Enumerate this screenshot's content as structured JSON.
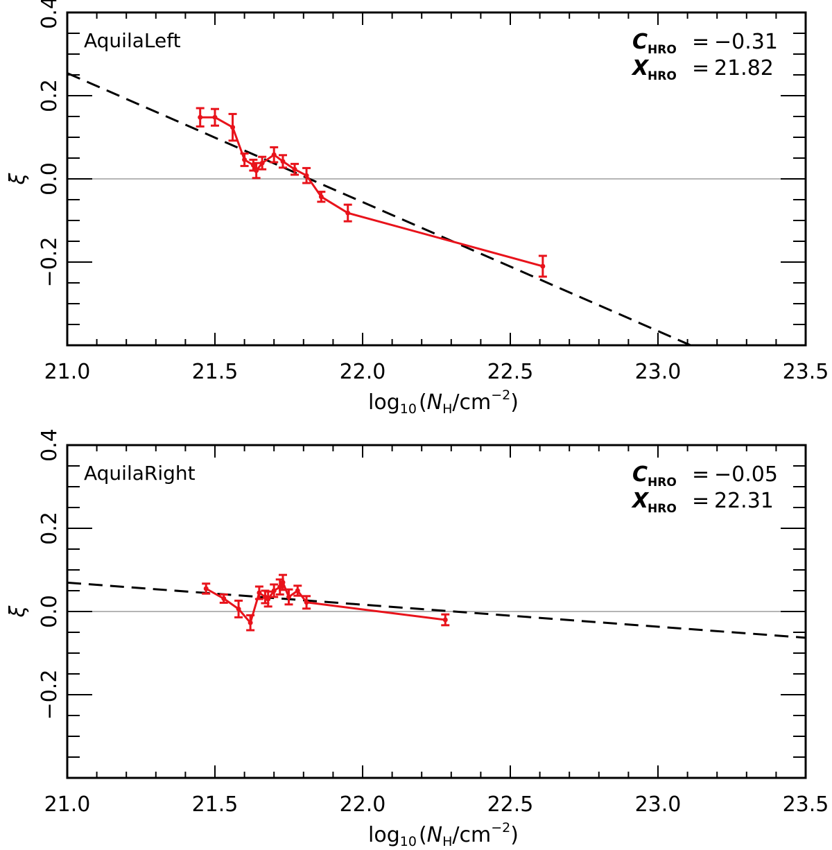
{
  "chart_data": [
    {
      "type": "line",
      "title": "",
      "panel_label": "AquilaLeft",
      "xlabel": "log10(NH/cm−2)",
      "xlabel_parts": {
        "base": "log",
        "base_sub": "10",
        "open": "(",
        "N": "N",
        "N_sub": "H",
        "slash_unit": "/cm",
        "exp": "−2",
        "close": ")"
      },
      "ylabel": "ξ",
      "xlim": [
        21.0,
        23.5
      ],
      "ylim": [
        -0.4,
        0.4
      ],
      "x_ticks": [
        "21.0",
        "21.5",
        "22.0",
        "22.5",
        "23.0",
        "23.5"
      ],
      "x_tick_values": [
        21.0,
        21.5,
        22.0,
        22.5,
        23.0,
        23.5
      ],
      "y_ticks": [
        "0.4",
        "0.2",
        "0.0",
        "−0.2"
      ],
      "y_tick_values": [
        0.4,
        0.2,
        0.0,
        -0.2
      ],
      "reference_line_y": 0.0,
      "annotations": [
        {
          "symbol": "C",
          "sub": "HRO",
          "eq": "=",
          "value": "−0.31"
        },
        {
          "symbol": "X",
          "sub": "HRO",
          "eq": "=",
          "value": "21.82"
        }
      ],
      "fit": {
        "slope": -0.31,
        "x_intercept": 21.82
      },
      "series": [
        {
          "name": "xi",
          "color": "#e8131b",
          "x": [
            21.45,
            21.5,
            21.56,
            21.6,
            21.63,
            21.64,
            21.66,
            21.7,
            21.73,
            21.77,
            21.81,
            21.86,
            21.95,
            22.61
          ],
          "y": [
            0.148,
            0.148,
            0.124,
            0.046,
            0.033,
            0.02,
            0.038,
            0.058,
            0.042,
            0.023,
            0.008,
            -0.043,
            -0.082,
            -0.21
          ],
          "err": [
            0.022,
            0.02,
            0.032,
            0.015,
            0.013,
            0.018,
            0.015,
            0.018,
            0.015,
            0.013,
            0.018,
            0.012,
            0.02,
            0.025
          ]
        }
      ]
    },
    {
      "type": "line",
      "title": "",
      "panel_label": "AquilaRight",
      "xlabel": "log10(NH/cm−2)",
      "xlabel_parts": {
        "base": "log",
        "base_sub": "10",
        "open": "(",
        "N": "N",
        "N_sub": "H",
        "slash_unit": "/cm",
        "exp": "−2",
        "close": ")"
      },
      "ylabel": "ξ",
      "xlim": [
        21.0,
        23.5
      ],
      "ylim": [
        -0.4,
        0.4
      ],
      "x_ticks": [
        "21.0",
        "21.5",
        "22.0",
        "22.5",
        "23.0",
        "23.5"
      ],
      "x_tick_values": [
        21.0,
        21.5,
        22.0,
        22.5,
        23.0,
        23.5
      ],
      "y_ticks": [
        "0.4",
        "0.2",
        "0.0",
        "−0.2"
      ],
      "y_tick_values": [
        0.4,
        0.2,
        0.0,
        -0.2
      ],
      "reference_line_y": 0.0,
      "annotations": [
        {
          "symbol": "C",
          "sub": "HRO",
          "eq": "=",
          "value": "−0.05"
        },
        {
          "symbol": "X",
          "sub": "HRO",
          "eq": "=",
          "value": "22.31"
        }
      ],
      "fit": {
        "slope": -0.053,
        "x_intercept": 22.31
      },
      "series": [
        {
          "name": "xi",
          "color": "#e8131b",
          "x": [
            21.47,
            21.53,
            21.58,
            21.62,
            21.65,
            21.67,
            21.68,
            21.7,
            21.72,
            21.73,
            21.75,
            21.78,
            21.81,
            22.28
          ],
          "y": [
            0.055,
            0.031,
            0.006,
            -0.027,
            0.045,
            0.035,
            0.03,
            0.05,
            0.059,
            0.07,
            0.035,
            0.05,
            0.022,
            -0.02
          ],
          "err": [
            0.012,
            0.01,
            0.02,
            0.018,
            0.015,
            0.015,
            0.018,
            0.015,
            0.018,
            0.018,
            0.018,
            0.012,
            0.015,
            0.013
          ]
        }
      ]
    }
  ]
}
